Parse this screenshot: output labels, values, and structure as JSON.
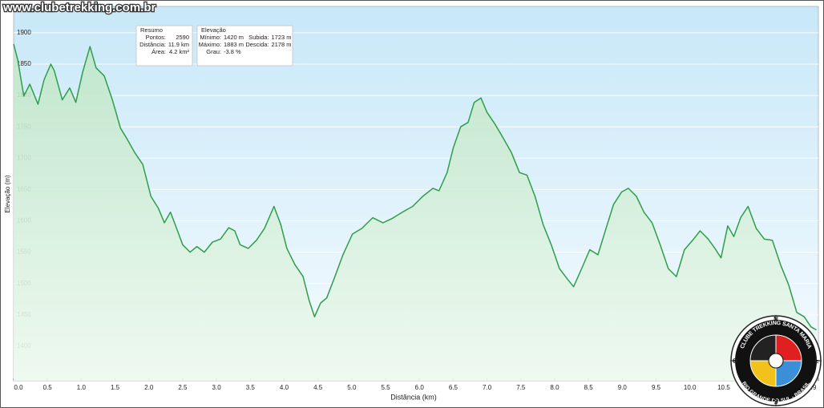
{
  "chart_data": {
    "type": "area",
    "watermark": "www.clubetrekking.com.br",
    "xlabel": "Distância (km)",
    "ylabel": "Elevação (m)",
    "xlim": [
      0,
      11.9
    ],
    "ylim": [
      1345,
      1942
    ],
    "yticks": [
      1400,
      1450,
      1500,
      1550,
      1600,
      1650,
      1700,
      1750,
      1800,
      1850,
      1900
    ],
    "xticks": [
      {
        "value": 0,
        "label": "0.0"
      },
      {
        "value": 0.5,
        "label": "0.5"
      },
      {
        "value": 1,
        "label": "1.0"
      },
      {
        "value": 1.5,
        "label": "1.5"
      },
      {
        "value": 2,
        "label": "2.0"
      },
      {
        "value": 2.5,
        "label": "2.5"
      },
      {
        "value": 3,
        "label": "3.0"
      },
      {
        "value": 3.5,
        "label": "3.5"
      },
      {
        "value": 4,
        "label": "4.0"
      },
      {
        "value": 4.5,
        "label": "4.5"
      },
      {
        "value": 5,
        "label": "5.0"
      },
      {
        "value": 5.5,
        "label": "5.5"
      },
      {
        "value": 6,
        "label": "6.0"
      },
      {
        "value": 6.5,
        "label": "6.5"
      },
      {
        "value": 7,
        "label": "7.0"
      },
      {
        "value": 7.5,
        "label": "7.5"
      },
      {
        "value": 8,
        "label": "8.0"
      },
      {
        "value": 8.5,
        "label": "8.5"
      },
      {
        "value": 9,
        "label": "9.0"
      },
      {
        "value": 9.5,
        "label": "9.5"
      },
      {
        "value": 10,
        "label": "10.0"
      },
      {
        "value": 10.5,
        "label": "10.5"
      },
      {
        "value": 11.9,
        "label": "11.9"
      }
    ],
    "grid": true,
    "color": "#2e9e4a",
    "x": [
      0.0,
      0.06,
      0.15,
      0.24,
      0.36,
      0.45,
      0.55,
      0.6,
      0.72,
      0.83,
      0.92,
      1.02,
      1.13,
      1.22,
      1.34,
      1.46,
      1.58,
      1.67,
      1.79,
      1.91,
      2.03,
      2.14,
      2.23,
      2.32,
      2.41,
      2.5,
      2.61,
      2.71,
      2.82,
      2.94,
      3.06,
      3.18,
      3.27,
      3.35,
      3.47,
      3.59,
      3.71,
      3.85,
      3.95,
      4.04,
      4.16,
      4.28,
      4.37,
      4.45,
      4.54,
      4.63,
      4.75,
      4.87,
      5.01,
      5.15,
      5.31,
      5.46,
      5.6,
      5.75,
      5.9,
      6.05,
      6.2,
      6.29,
      6.41,
      6.5,
      6.61,
      6.72,
      6.81,
      6.91,
      7.0,
      7.12,
      7.24,
      7.36,
      7.48,
      7.59,
      7.71,
      7.83,
      7.95,
      8.07,
      8.19,
      8.28,
      8.4,
      8.52,
      8.64,
      8.76,
      8.87,
      8.99,
      9.09,
      9.21,
      9.32,
      9.44,
      9.56,
      9.68,
      9.8,
      9.92,
      10.04,
      10.15,
      10.27,
      10.37,
      10.46,
      10.56,
      10.65,
      10.75,
      10.86,
      10.98,
      11.1,
      11.22,
      11.34,
      11.46,
      11.58,
      11.69,
      11.79,
      11.87
    ],
    "values": [
      1882,
      1857,
      1799,
      1818,
      1786,
      1825,
      1850,
      1840,
      1793,
      1812,
      1789,
      1837,
      1878,
      1844,
      1831,
      1793,
      1748,
      1732,
      1709,
      1690,
      1639,
      1620,
      1597,
      1614,
      1588,
      1562,
      1550,
      1559,
      1550,
      1566,
      1571,
      1589,
      1584,
      1562,
      1556,
      1569,
      1588,
      1623,
      1594,
      1556,
      1530,
      1511,
      1473,
      1447,
      1469,
      1477,
      1511,
      1546,
      1579,
      1588,
      1605,
      1597,
      1604,
      1614,
      1623,
      1639,
      1652,
      1648,
      1677,
      1716,
      1750,
      1757,
      1789,
      1796,
      1773,
      1754,
      1732,
      1709,
      1677,
      1673,
      1639,
      1594,
      1562,
      1524,
      1507,
      1495,
      1524,
      1554,
      1546,
      1588,
      1626,
      1646,
      1652,
      1639,
      1614,
      1597,
      1562,
      1524,
      1511,
      1554,
      1569,
      1584,
      1571,
      1556,
      1541,
      1592,
      1575,
      1605,
      1623,
      1588,
      1571,
      1569,
      1530,
      1498,
      1454,
      1447,
      1431,
      1426
    ],
    "stats_boxes": [
      {
        "title": "Resumo",
        "columns": [
          [
            {
              "label": "Pontos:",
              "value": "2590"
            },
            {
              "label": "Distância:",
              "value": "11.9 km"
            },
            {
              "label": "Área:",
              "value": "4.2 km²"
            }
          ]
        ]
      },
      {
        "title": "Elevação",
        "columns": [
          [
            {
              "label": "Mínimo:",
              "value": "1420 m"
            },
            {
              "label": "Máximo:",
              "value": "1883 m"
            },
            {
              "label": "Grau:",
              "value": "-3.8 %"
            }
          ],
          [
            {
              "label": "Subida:",
              "value": "1723 m"
            },
            {
              "label": "Descida:",
              "value": "2178 m"
            }
          ]
        ]
      }
    ],
    "logo": {
      "ring_top": "CLUBE TREKKING SANTA MARIA",
      "ring_bottom": "RIO GRANDE DO SUL - BRASIL",
      "compass": {
        "north": "N",
        "south": "S",
        "west": "O",
        "east": "L"
      }
    }
  }
}
